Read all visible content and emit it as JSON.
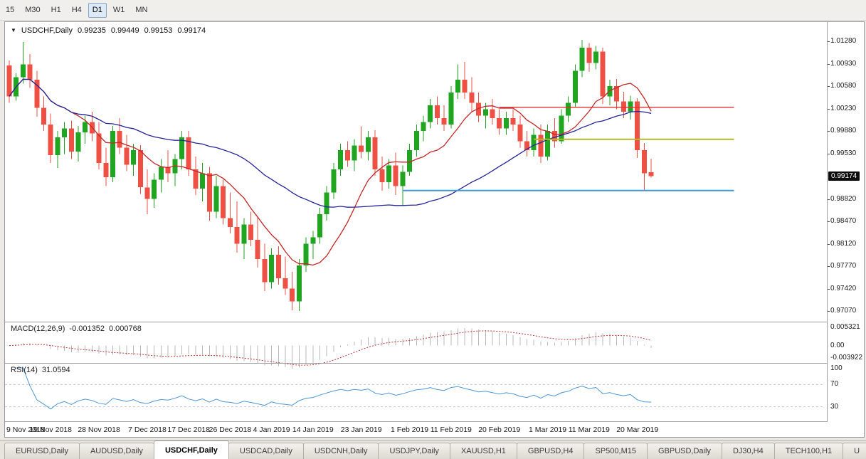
{
  "toolbar": {
    "timeframes": [
      {
        "label": "15",
        "active": false
      },
      {
        "label": "M30",
        "active": false
      },
      {
        "label": "H1",
        "active": false
      },
      {
        "label": "H4",
        "active": false
      },
      {
        "label": "D1",
        "active": true
      },
      {
        "label": "W1",
        "active": false
      },
      {
        "label": "MN",
        "active": false
      }
    ]
  },
  "chart": {
    "title": {
      "symbol": "USDCHF,Daily",
      "open": "0.99235",
      "high": "0.99449",
      "low": "0.99153",
      "close": "0.99174"
    },
    "price_axis": {
      "current": "0.99174"
    },
    "macd_label": {
      "name": "MACD(12,26,9)",
      "main": "-0.001352",
      "signal": "0.000768"
    },
    "rsi_label": {
      "name": "RSI(14)",
      "value": "31.0594"
    },
    "colors": {
      "bull": "#1fa51f",
      "bear": "#ef5044",
      "ma_fast": "#c42828",
      "ma_slow": "#24249a",
      "macd_bar": "#b9b9b9",
      "macd_signal": "#c03636",
      "rsi_line": "#4f96d2",
      "hline_red": "#e03030",
      "hline_olive": "#b4b82e",
      "hline_blue": "#3e9ad6"
    }
  },
  "chart_data": {
    "type": "candlestick",
    "symbol": "USDCHF",
    "timeframe": "Daily",
    "ohlc_display": {
      "open": 0.99235,
      "high": 0.99449,
      "low": 0.99153,
      "close": 0.99174
    },
    "y_axis": {
      "min": 0.9707,
      "max": 1.0128,
      "tick_step": 0.0035,
      "labels": [
        "1.01280",
        "1.00930",
        "1.00580",
        "1.00230",
        "0.99880",
        "0.99530",
        "0.98820",
        "0.98470",
        "0.98120",
        "0.97770",
        "0.97420",
        "0.97070"
      ]
    },
    "x_axis": {
      "ticks": [
        {
          "label": "9 Nov 2018",
          "index": 0
        },
        {
          "label": "19 Nov 2018",
          "index": 6
        },
        {
          "label": "28 Nov 2018",
          "index": 13
        },
        {
          "label": "7 Dec 2018",
          "index": 20
        },
        {
          "label": "17 Dec 2018",
          "index": 26
        },
        {
          "label": "26 Dec 2018",
          "index": 32
        },
        {
          "label": "4 Jan 2019",
          "index": 38
        },
        {
          "label": "14 Jan 2019",
          "index": 44
        },
        {
          "label": "23 Jan 2019",
          "index": 51
        },
        {
          "label": "1 Feb 2019",
          "index": 58
        },
        {
          "label": "11 Feb 2019",
          "index": 64
        },
        {
          "label": "20 Feb 2019",
          "index": 71
        },
        {
          "label": "1 Mar 2019",
          "index": 78
        },
        {
          "label": "11 Mar 2019",
          "index": 84
        },
        {
          "label": "20 Mar 2019",
          "index": 91
        }
      ]
    },
    "candles": [
      [
        1.009,
        1.0098,
        1.0032,
        1.0042
      ],
      [
        1.0042,
        1.0078,
        1.0035,
        1.0072
      ],
      [
        1.0072,
        1.0127,
        1.0062,
        1.0092
      ],
      [
        1.0092,
        1.0108,
        1.0055,
        1.0068
      ],
      [
        1.0068,
        1.0082,
        1.001,
        1.0024
      ],
      [
        1.0024,
        1.0042,
        0.9988,
        0.9998
      ],
      [
        0.9998,
        1.0015,
        0.9938,
        0.995
      ],
      [
        0.995,
        0.9988,
        0.993,
        0.9978
      ],
      [
        0.9978,
        1.0002,
        0.9952,
        0.9992
      ],
      [
        0.9992,
        1.0004,
        0.9944,
        0.9956
      ],
      [
        0.9956,
        0.9996,
        0.994,
        0.9986
      ],
      [
        0.9986,
        1.0012,
        0.9968,
        1.0002
      ],
      [
        1.0002,
        1.0018,
        0.9972,
        0.9984
      ],
      [
        0.9984,
        1.0002,
        0.9928,
        0.9938
      ],
      [
        0.9938,
        0.9962,
        0.9902,
        0.9916
      ],
      [
        0.9916,
        0.9996,
        0.9908,
        0.9988
      ],
      [
        0.9988,
        1.0008,
        0.9952,
        0.9962
      ],
      [
        0.9962,
        0.9982,
        0.9925,
        0.9935
      ],
      [
        0.9935,
        0.9968,
        0.9918,
        0.9958
      ],
      [
        0.9958,
        0.9966,
        0.989,
        0.99
      ],
      [
        0.99,
        0.9928,
        0.9858,
        0.9882
      ],
      [
        0.9882,
        0.9922,
        0.9868,
        0.9912
      ],
      [
        0.9912,
        0.9944,
        0.9892,
        0.9932
      ],
      [
        0.9932,
        0.9958,
        0.9908,
        0.9922
      ],
      [
        0.9922,
        0.9952,
        0.9902,
        0.9944
      ],
      [
        0.9944,
        0.9988,
        0.9928,
        0.9978
      ],
      [
        0.9978,
        0.9988,
        0.9918,
        0.9928
      ],
      [
        0.9928,
        0.9948,
        0.9888,
        0.9898
      ],
      [
        0.9898,
        0.9938,
        0.9878,
        0.9922
      ],
      [
        0.9922,
        0.9932,
        0.9848,
        0.9862
      ],
      [
        0.9862,
        0.9918,
        0.9852,
        0.9902
      ],
      [
        0.9902,
        0.9912,
        0.9842,
        0.9852
      ],
      [
        0.9852,
        0.9892,
        0.9828,
        0.9838
      ],
      [
        0.9838,
        0.9878,
        0.9798,
        0.9812
      ],
      [
        0.9812,
        0.9852,
        0.9788,
        0.9842
      ],
      [
        0.9842,
        0.9862,
        0.9808,
        0.9818
      ],
      [
        0.9818,
        0.9855,
        0.9775,
        0.9788
      ],
      [
        0.9788,
        0.9812,
        0.9738,
        0.9752
      ],
      [
        0.9752,
        0.9805,
        0.9742,
        0.9795
      ],
      [
        0.9795,
        0.9808,
        0.9748,
        0.9758
      ],
      [
        0.9758,
        0.9792,
        0.9732,
        0.9742
      ],
      [
        0.9742,
        0.9768,
        0.9708,
        0.9722
      ],
      [
        0.9722,
        0.9788,
        0.9707,
        0.9778
      ],
      [
        0.9778,
        0.9822,
        0.9768,
        0.9812
      ],
      [
        0.9812,
        0.9832,
        0.9788,
        0.9822
      ],
      [
        0.9822,
        0.9868,
        0.9812,
        0.9858
      ],
      [
        0.9858,
        0.9902,
        0.9848,
        0.9892
      ],
      [
        0.9892,
        0.9938,
        0.9882,
        0.9928
      ],
      [
        0.9928,
        0.9968,
        0.9918,
        0.9958
      ],
      [
        0.9958,
        0.9972,
        0.9932,
        0.9942
      ],
      [
        0.9942,
        0.9975,
        0.9925,
        0.9965
      ],
      [
        0.9965,
        0.9995,
        0.9945,
        0.9955
      ],
      [
        0.9955,
        0.9988,
        0.9942,
        0.9978
      ],
      [
        0.9978,
        0.9989,
        0.9918,
        0.9928
      ],
      [
        0.9928,
        0.9948,
        0.9895,
        0.9908
      ],
      [
        0.9908,
        0.9944,
        0.9898,
        0.9934
      ],
      [
        0.9934,
        0.9954,
        0.9888,
        0.9902
      ],
      [
        0.9902,
        0.9934,
        0.9872,
        0.9924
      ],
      [
        0.9924,
        0.9968,
        0.9918,
        0.9958
      ],
      [
        0.9958,
        0.9998,
        0.9948,
        0.9988
      ],
      [
        0.9988,
        1.0012,
        0.9972,
        1.0002
      ],
      [
        1.0002,
        1.0038,
        0.9992,
        1.0028
      ],
      [
        1.0028,
        1.0042,
        0.9998,
        1.0008
      ],
      [
        1.0008,
        1.0028,
        0.9988,
        0.9998
      ],
      [
        0.9998,
        1.0058,
        0.9992,
        1.0048
      ],
      [
        1.0048,
        1.0092,
        1.0038,
        1.0068
      ],
      [
        1.0068,
        1.0096,
        1.0038,
        1.0048
      ],
      [
        1.0048,
        1.0072,
        1.0018,
        1.0032
      ],
      [
        1.0032,
        1.0048,
        1.0002,
        1.0012
      ],
      [
        1.0012,
        1.0032,
        0.9992,
        1.0022
      ],
      [
        1.0022,
        1.0038,
        0.9998,
        1.0008
      ],
      [
        1.0008,
        1.0022,
        0.9982,
        0.9992
      ],
      [
        0.9992,
        1.0018,
        0.9982,
        1.0008
      ],
      [
        1.0008,
        1.0022,
        0.9988,
        0.9998
      ],
      [
        0.9998,
        1.0012,
        0.9962,
        0.9972
      ],
      [
        0.9972,
        0.9988,
        0.9948,
        0.9958
      ],
      [
        0.9958,
        0.9992,
        0.9948,
        0.9982
      ],
      [
        0.9982,
        0.9998,
        0.9938,
        0.9948
      ],
      [
        0.9948,
        0.9998,
        0.9942,
        0.9988
      ],
      [
        0.9988,
        1.0008,
        0.9962,
        0.9972
      ],
      [
        0.9972,
        1.0022,
        0.9968,
        1.0012
      ],
      [
        1.0012,
        1.0042,
        1.0002,
        1.0032
      ],
      [
        1.0032,
        1.0092,
        1.0026,
        1.0082
      ],
      [
        1.0082,
        1.013,
        1.0072,
        1.0118
      ],
      [
        1.0118,
        1.0125,
        1.008,
        1.0094
      ],
      [
        1.0094,
        1.0121,
        1.0084,
        1.0112
      ],
      [
        1.0112,
        1.0118,
        1.003,
        1.0042
      ],
      [
        1.0042,
        1.0068,
        1.0028,
        1.0058
      ],
      [
        1.0058,
        1.0069,
        1.0022,
        1.0034
      ],
      [
        1.0034,
        1.0049,
        1.0008,
        1.0018
      ],
      [
        1.0018,
        1.0043,
        1.0006,
        1.0034
      ],
      [
        1.0034,
        1.0039,
        0.9946,
        0.9958
      ],
      [
        0.9958,
        0.9969,
        0.9894,
        0.9922
      ],
      [
        0.99235,
        0.99449,
        0.99153,
        0.99174
      ]
    ],
    "hlines": [
      {
        "name": "resistance-line-red",
        "price": 1.0025,
        "from": 71,
        "to": 105,
        "color": "#e03030",
        "width": 1.4
      },
      {
        "name": "level-line-olive",
        "price": 0.9975,
        "from": 76,
        "to": 105,
        "color": "#b4b82e",
        "width": 2
      },
      {
        "name": "support-line-blue",
        "price": 0.9895,
        "from": 57,
        "to": 105,
        "color": "#3e9ad6",
        "width": 2
      }
    ],
    "moving_averages": [
      {
        "name": "ma-fast",
        "period": 10,
        "color": "#c42828"
      },
      {
        "name": "ma-slow",
        "period": 34,
        "color": "#24249a"
      }
    ],
    "macd": {
      "fast": 12,
      "slow": 26,
      "signal": 9,
      "current_main": -0.001352,
      "current_signal": 0.000768,
      "axis_labels": [
        {
          "text": "0.005321",
          "value": 0.005321
        },
        {
          "text": "0.00",
          "value": 0
        },
        {
          "text": "-0.003922",
          "value": -0.003922
        }
      ]
    },
    "rsi": {
      "period": 14,
      "current": 31.0594,
      "levels": [
        70,
        30
      ],
      "axis_labels": [
        {
          "text": "100",
          "value": 100
        },
        {
          "text": "70",
          "value": 70
        },
        {
          "text": "30",
          "value": 30
        }
      ]
    }
  },
  "tabs": [
    {
      "label": "EURUSD,Daily",
      "active": false
    },
    {
      "label": "AUDUSD,Daily",
      "active": false
    },
    {
      "label": "USDCHF,Daily",
      "active": true
    },
    {
      "label": "USDCAD,Daily",
      "active": false
    },
    {
      "label": "USDCNH,Daily",
      "active": false
    },
    {
      "label": "USDJPY,Daily",
      "active": false
    },
    {
      "label": "XAUUSD,H1",
      "active": false
    },
    {
      "label": "GBPUSD,H4",
      "active": false
    },
    {
      "label": "SP500,M15",
      "active": false
    },
    {
      "label": "GBPUSD,Daily",
      "active": false
    },
    {
      "label": "DJ30,H4",
      "active": false
    },
    {
      "label": "TECH100,H1",
      "active": false
    },
    {
      "label": "U",
      "active": false
    }
  ]
}
